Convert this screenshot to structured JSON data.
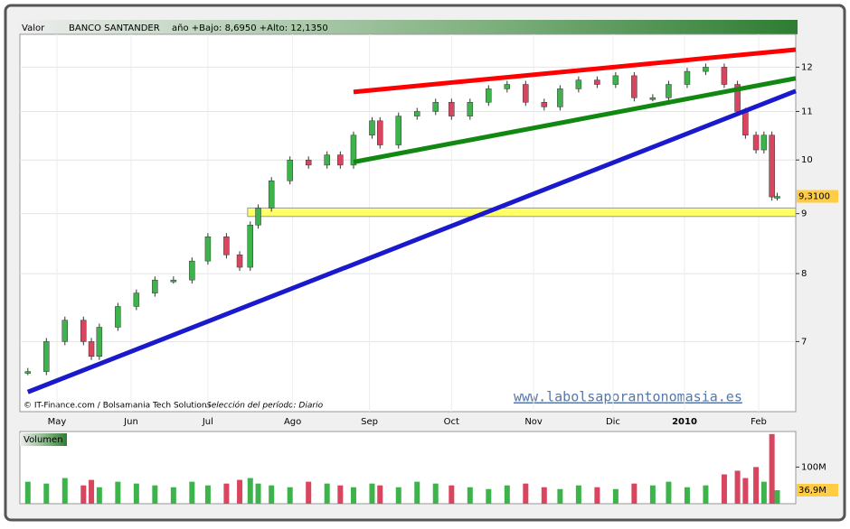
{
  "chart_data": {
    "type": "candlestick",
    "header": {
      "label": "Valor",
      "name": "BANCO SANTANDER",
      "range": "año +Bajo: 8,6950 +Alto: 12,1350"
    },
    "footer": {
      "source": "© IT-Finance.com / Bolsamania Tech Solutions",
      "period": "Selección del período: Diario"
    },
    "watermark": "www.labolsaporantonomasia.es",
    "log_scale": true,
    "x": [
      -11,
      -4,
      3,
      10,
      13,
      16,
      23,
      30,
      37,
      44,
      51,
      57,
      64,
      69,
      73,
      76,
      81,
      88,
      95,
      102,
      107,
      112,
      119,
      122,
      129,
      136,
      143,
      149,
      156,
      163,
      170,
      177,
      184,
      190,
      197,
      204,
      211,
      218,
      225,
      231,
      238,
      245,
      252,
      257,
      260,
      264,
      267,
      270,
      272
    ],
    "values": [
      6.6,
      7.0,
      7.3,
      7.0,
      6.8,
      7.2,
      7.5,
      7.7,
      7.9,
      7.9,
      8.2,
      8.6,
      8.3,
      8.1,
      8.8,
      9.1,
      9.6,
      10.0,
      9.9,
      10.1,
      9.9,
      10.5,
      10.8,
      10.3,
      10.9,
      11.0,
      11.2,
      10.9,
      11.2,
      11.5,
      11.6,
      11.2,
      11.1,
      11.5,
      11.7,
      11.6,
      11.8,
      11.3,
      11.3,
      11.6,
      11.9,
      12.0,
      11.6,
      11.0,
      10.5,
      10.2,
      10.5,
      9.3,
      9.31
    ],
    "up_color": "#3cb44b",
    "down_color": "#d9455f",
    "xlim": [
      -14,
      279
    ],
    "xticks": [
      {
        "value": 0,
        "label": "May"
      },
      {
        "value": 28,
        "label": "Jun"
      },
      {
        "value": 57,
        "label": "Jul"
      },
      {
        "value": 89,
        "label": "Ago"
      },
      {
        "value": 118,
        "label": "Sep"
      },
      {
        "value": 149,
        "label": "Oct"
      },
      {
        "value": 180,
        "label": "Nov"
      },
      {
        "value": 210,
        "label": "Dic"
      },
      {
        "value": 237,
        "label": "2010"
      },
      {
        "value": 265,
        "label": "Feb"
      }
    ],
    "ylim": [
      6.1,
      12.8
    ],
    "yticks": [
      7,
      8,
      9,
      10,
      11,
      12
    ],
    "last_price": {
      "value": 9.31,
      "label": "9,3100"
    },
    "trendlines": [
      {
        "color": "#ff0000",
        "x": [
          112,
          279
        ],
        "y": [
          11.43,
          12.42
        ]
      },
      {
        "color": "#118811",
        "x": [
          112,
          279
        ],
        "y": [
          9.96,
          11.74
        ]
      },
      {
        "color": "#1a1acc",
        "x": [
          -11,
          279
        ],
        "y": [
          6.34,
          11.45
        ]
      }
    ],
    "band": {
      "color": "#ffff66",
      "x": [
        72,
        279
      ],
      "y": [
        8.95,
        9.1
      ]
    },
    "volume": {
      "title": "Volumen",
      "values": [
        60,
        55,
        70,
        50,
        65,
        45,
        60,
        55,
        50,
        45,
        60,
        50,
        55,
        65,
        70,
        55,
        50,
        45,
        60,
        55,
        50,
        45,
        55,
        50,
        45,
        60,
        55,
        50,
        45,
        40,
        50,
        55,
        45,
        40,
        50,
        45,
        40,
        55,
        50,
        60,
        45,
        50,
        80,
        90,
        70,
        100,
        60,
        190,
        36.9
      ],
      "ylim": [
        0,
        197
      ],
      "yticks": [
        {
          "value": 100,
          "label": "100M"
        }
      ],
      "last": {
        "value": 36.9,
        "label": "36,9M"
      }
    }
  }
}
